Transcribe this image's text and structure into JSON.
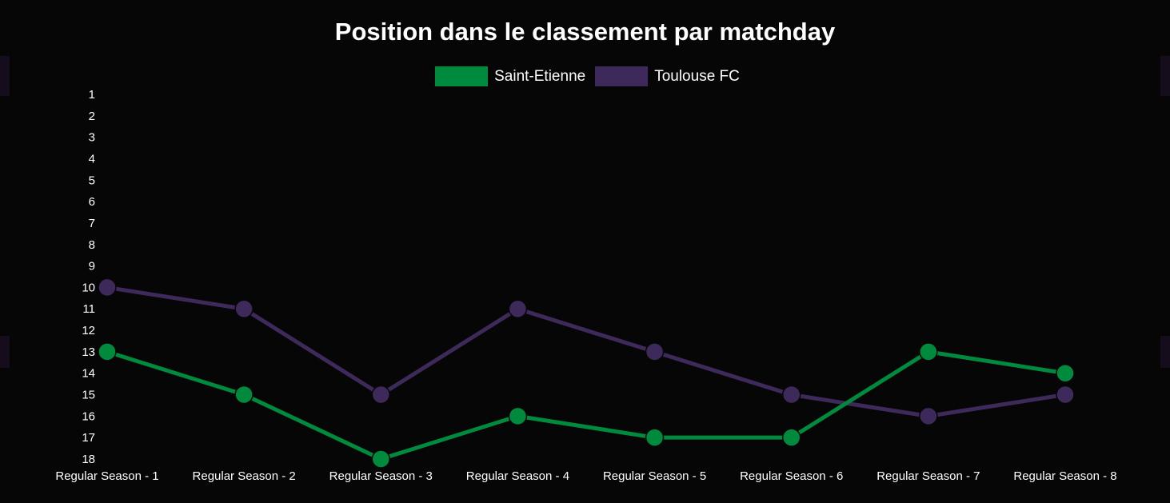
{
  "chart_data": {
    "type": "line",
    "title": "Position dans le classement par matchday",
    "categories": [
      "Regular Season - 1",
      "Regular Season - 2",
      "Regular Season - 3",
      "Regular Season - 4",
      "Regular Season - 5",
      "Regular Season - 6",
      "Regular Season - 7",
      "Regular Season - 8"
    ],
    "y_ticks": [
      "1",
      "2",
      "3",
      "4",
      "5",
      "6",
      "7",
      "8",
      "9",
      "10",
      "11",
      "12",
      "13",
      "14",
      "15",
      "16",
      "17",
      "18"
    ],
    "ylim": [
      1,
      18
    ],
    "y_reversed": true,
    "grid": false,
    "legend_position": "top-center",
    "series": [
      {
        "name": "Saint-Etienne",
        "color": "#008a3e",
        "values": [
          13,
          15,
          18,
          16,
          17,
          17,
          13,
          14
        ]
      },
      {
        "name": "Toulouse FC",
        "color": "#3d2a5a",
        "values": [
          10,
          11,
          15,
          11,
          13,
          15,
          16,
          15
        ]
      }
    ]
  }
}
